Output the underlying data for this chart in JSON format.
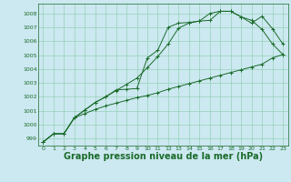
{
  "background_color": "#cce8f0",
  "plot_bg_color": "#cce8f0",
  "grid_color": "#88ccaa",
  "line_color": "#1a6b2a",
  "xlabel": "Graphe pression niveau de la mer (hPa)",
  "xlabel_fontsize": 7,
  "xlim": [
    -0.5,
    23.5
  ],
  "ylim": [
    998.5,
    1008.7
  ],
  "yticks": [
    999,
    1000,
    1001,
    1002,
    1003,
    1004,
    1005,
    1006,
    1007,
    1008
  ],
  "xticks": [
    0,
    1,
    2,
    3,
    4,
    5,
    6,
    7,
    8,
    9,
    10,
    11,
    12,
    13,
    14,
    15,
    16,
    17,
    18,
    19,
    20,
    21,
    22,
    23
  ],
  "series1": [
    998.75,
    999.35,
    999.35,
    1000.5,
    1000.8,
    1001.1,
    1001.35,
    1001.55,
    1001.75,
    1001.95,
    1002.1,
    1002.3,
    1002.55,
    1002.75,
    1002.95,
    1003.15,
    1003.35,
    1003.55,
    1003.75,
    1003.95,
    1004.15,
    1004.35,
    1004.8,
    1005.05
  ],
  "series2": [
    998.75,
    999.35,
    999.35,
    1000.5,
    1001.05,
    1001.6,
    1002.0,
    1002.5,
    1002.55,
    1002.6,
    1004.8,
    1005.35,
    1007.0,
    1007.3,
    1007.35,
    1007.45,
    1008.0,
    1008.15,
    1008.15,
    1007.75,
    1007.5,
    1006.85,
    1005.8,
    1005.05
  ],
  "series3": [
    998.75,
    999.35,
    999.35,
    1000.5,
    1001.05,
    1001.6,
    1002.0,
    1002.45,
    1002.9,
    1003.35,
    1004.1,
    1004.9,
    1005.8,
    1006.95,
    1007.3,
    1007.45,
    1007.5,
    1008.15,
    1008.15,
    1007.75,
    1007.3,
    1007.8,
    1006.9,
    1005.8
  ]
}
